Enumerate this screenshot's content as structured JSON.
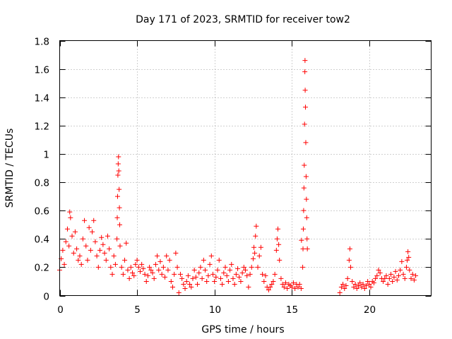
{
  "chart_data": {
    "type": "scatter",
    "title": "Day 171 of 2023, SRMTID for receiver tow2",
    "xlabel": "GPS time / hours",
    "ylabel": "SRMTID / TECUs",
    "xlim": [
      0,
      24
    ],
    "ylim": [
      0,
      1.8
    ],
    "xticks": [
      0,
      5,
      10,
      15,
      20
    ],
    "xtick_labels": [
      "0",
      "5",
      "10",
      "15",
      "20"
    ],
    "yticks": [
      0,
      0.2,
      0.4,
      0.6,
      0.8,
      1.0,
      1.2,
      1.4,
      1.6,
      1.8
    ],
    "ytick_labels": [
      "0",
      "0.2",
      "0.4",
      "0.6",
      "0.8",
      "1",
      "1.2",
      "1.4",
      "1.6",
      "1.8"
    ],
    "grid": true,
    "marker": "plus",
    "marker_color": "#ff0000",
    "series": [
      {
        "name": "SRMTID",
        "points": [
          [
            0.0,
            0.18
          ],
          [
            0.1,
            0.26
          ],
          [
            0.2,
            0.32
          ],
          [
            0.3,
            0.22
          ],
          [
            0.4,
            0.38
          ],
          [
            0.5,
            0.47
          ],
          [
            0.6,
            0.35
          ],
          [
            0.65,
            0.59
          ],
          [
            0.7,
            0.55
          ],
          [
            0.8,
            0.42
          ],
          [
            0.9,
            0.3
          ],
          [
            1.0,
            0.45
          ],
          [
            1.1,
            0.33
          ],
          [
            1.2,
            0.25
          ],
          [
            1.3,
            0.28
          ],
          [
            1.4,
            0.22
          ],
          [
            1.5,
            0.4
          ],
          [
            1.6,
            0.53
          ],
          [
            1.7,
            0.35
          ],
          [
            1.8,
            0.25
          ],
          [
            1.9,
            0.48
          ],
          [
            2.0,
            0.32
          ],
          [
            2.1,
            0.45
          ],
          [
            2.2,
            0.53
          ],
          [
            2.3,
            0.38
          ],
          [
            2.4,
            0.28
          ],
          [
            2.5,
            0.2
          ],
          [
            2.6,
            0.32
          ],
          [
            2.7,
            0.41
          ],
          [
            2.8,
            0.36
          ],
          [
            2.9,
            0.3
          ],
          [
            3.0,
            0.25
          ],
          [
            3.1,
            0.42
          ],
          [
            3.2,
            0.33
          ],
          [
            3.3,
            0.2
          ],
          [
            3.4,
            0.15
          ],
          [
            3.5,
            0.28
          ],
          [
            3.6,
            0.22
          ],
          [
            3.7,
            0.4
          ],
          [
            3.72,
            0.55
          ],
          [
            3.74,
            0.7
          ],
          [
            3.76,
            0.85
          ],
          [
            3.78,
            0.93
          ],
          [
            3.8,
            0.98
          ],
          [
            3.82,
            0.88
          ],
          [
            3.84,
            0.75
          ],
          [
            3.86,
            0.62
          ],
          [
            3.88,
            0.5
          ],
          [
            3.9,
            0.35
          ],
          [
            4.0,
            0.2
          ],
          [
            4.1,
            0.15
          ],
          [
            4.2,
            0.25
          ],
          [
            4.3,
            0.37
          ],
          [
            4.4,
            0.18
          ],
          [
            4.5,
            0.12
          ],
          [
            4.6,
            0.2
          ],
          [
            4.7,
            0.16
          ],
          [
            4.8,
            0.14
          ],
          [
            4.9,
            0.22
          ],
          [
            5.0,
            0.25
          ],
          [
            5.1,
            0.2
          ],
          [
            5.2,
            0.17
          ],
          [
            5.3,
            0.22
          ],
          [
            5.4,
            0.19
          ],
          [
            5.5,
            0.15
          ],
          [
            5.6,
            0.1
          ],
          [
            5.7,
            0.14
          ],
          [
            5.8,
            0.2
          ],
          [
            5.9,
            0.18
          ],
          [
            6.0,
            0.16
          ],
          [
            6.1,
            0.12
          ],
          [
            6.2,
            0.22
          ],
          [
            6.3,
            0.28
          ],
          [
            6.4,
            0.18
          ],
          [
            6.5,
            0.24
          ],
          [
            6.6,
            0.15
          ],
          [
            6.7,
            0.2
          ],
          [
            6.8,
            0.13
          ],
          [
            6.9,
            0.28
          ],
          [
            7.0,
            0.18
          ],
          [
            7.1,
            0.25
          ],
          [
            7.2,
            0.1
          ],
          [
            7.3,
            0.06
          ],
          [
            7.4,
            0.15
          ],
          [
            7.5,
            0.3
          ],
          [
            7.6,
            0.2
          ],
          [
            7.7,
            0.02
          ],
          [
            7.8,
            0.15
          ],
          [
            7.9,
            0.12
          ],
          [
            8.0,
            0.08
          ],
          [
            8.1,
            0.05
          ],
          [
            8.2,
            0.1
          ],
          [
            8.3,
            0.14
          ],
          [
            8.4,
            0.08
          ],
          [
            8.5,
            0.06
          ],
          [
            8.6,
            0.12
          ],
          [
            8.7,
            0.18
          ],
          [
            8.8,
            0.13
          ],
          [
            8.9,
            0.08
          ],
          [
            9.0,
            0.16
          ],
          [
            9.1,
            0.2
          ],
          [
            9.2,
            0.12
          ],
          [
            9.3,
            0.25
          ],
          [
            9.4,
            0.18
          ],
          [
            9.5,
            0.1
          ],
          [
            9.6,
            0.14
          ],
          [
            9.7,
            0.22
          ],
          [
            9.8,
            0.28
          ],
          [
            9.9,
            0.15
          ],
          [
            10.0,
            0.1
          ],
          [
            10.1,
            0.13
          ],
          [
            10.2,
            0.18
          ],
          [
            10.3,
            0.25
          ],
          [
            10.4,
            0.12
          ],
          [
            10.5,
            0.08
          ],
          [
            10.6,
            0.16
          ],
          [
            10.7,
            0.2
          ],
          [
            10.8,
            0.14
          ],
          [
            10.9,
            0.1
          ],
          [
            11.0,
            0.18
          ],
          [
            11.1,
            0.22
          ],
          [
            11.2,
            0.12
          ],
          [
            11.3,
            0.08
          ],
          [
            11.4,
            0.15
          ],
          [
            11.5,
            0.19
          ],
          [
            11.6,
            0.13
          ],
          [
            11.7,
            0.1
          ],
          [
            11.8,
            0.16
          ],
          [
            11.9,
            0.2
          ],
          [
            12.0,
            0.18
          ],
          [
            12.1,
            0.14
          ],
          [
            12.2,
            0.06
          ],
          [
            12.3,
            0.15
          ],
          [
            12.4,
            0.2
          ],
          [
            12.5,
            0.26
          ],
          [
            12.55,
            0.34
          ],
          [
            12.6,
            0.3
          ],
          [
            12.65,
            0.42
          ],
          [
            12.7,
            0.49
          ],
          [
            12.8,
            0.2
          ],
          [
            12.9,
            0.28
          ],
          [
            13.0,
            0.34
          ],
          [
            13.1,
            0.15
          ],
          [
            13.2,
            0.1
          ],
          [
            13.3,
            0.14
          ],
          [
            13.4,
            0.06
          ],
          [
            13.5,
            0.04
          ],
          [
            13.6,
            0.06
          ],
          [
            13.7,
            0.08
          ],
          [
            13.8,
            0.1
          ],
          [
            13.9,
            0.15
          ],
          [
            14.0,
            0.32
          ],
          [
            14.05,
            0.4
          ],
          [
            14.1,
            0.47
          ],
          [
            14.15,
            0.36
          ],
          [
            14.2,
            0.25
          ],
          [
            14.3,
            0.12
          ],
          [
            14.4,
            0.08
          ],
          [
            14.5,
            0.06
          ],
          [
            14.6,
            0.09
          ],
          [
            14.7,
            0.05
          ],
          [
            14.8,
            0.08
          ],
          [
            14.9,
            0.07
          ],
          [
            15.0,
            0.06
          ],
          [
            15.1,
            0.09
          ],
          [
            15.2,
            0.05
          ],
          [
            15.3,
            0.08
          ],
          [
            15.4,
            0.06
          ],
          [
            15.5,
            0.08
          ],
          [
            15.6,
            0.05
          ],
          [
            15.62,
            0.39
          ],
          [
            15.7,
            0.2
          ],
          [
            15.72,
            0.33
          ],
          [
            15.74,
            0.47
          ],
          [
            15.76,
            0.6
          ],
          [
            15.78,
            0.76
          ],
          [
            15.8,
            0.92
          ],
          [
            15.82,
            1.21
          ],
          [
            15.84,
            1.58
          ],
          [
            15.85,
            1.66
          ],
          [
            15.86,
            1.45
          ],
          [
            15.88,
            1.33
          ],
          [
            15.9,
            1.08
          ],
          [
            15.92,
            0.84
          ],
          [
            15.94,
            0.68
          ],
          [
            15.96,
            0.55
          ],
          [
            15.98,
            0.4
          ],
          [
            16.0,
            0.33
          ],
          [
            18.1,
            0.02
          ],
          [
            18.2,
            0.06
          ],
          [
            18.3,
            0.08
          ],
          [
            18.4,
            0.05
          ],
          [
            18.5,
            0.07
          ],
          [
            18.6,
            0.12
          ],
          [
            18.7,
            0.25
          ],
          [
            18.75,
            0.33
          ],
          [
            18.8,
            0.2
          ],
          [
            18.9,
            0.1
          ],
          [
            19.0,
            0.06
          ],
          [
            19.1,
            0.08
          ],
          [
            19.2,
            0.05
          ],
          [
            19.3,
            0.07
          ],
          [
            19.4,
            0.09
          ],
          [
            19.5,
            0.06
          ],
          [
            19.6,
            0.08
          ],
          [
            19.7,
            0.05
          ],
          [
            19.8,
            0.07
          ],
          [
            19.9,
            0.1
          ],
          [
            20.0,
            0.08
          ],
          [
            20.1,
            0.06
          ],
          [
            20.2,
            0.1
          ],
          [
            20.3,
            0.09
          ],
          [
            20.4,
            0.12
          ],
          [
            20.5,
            0.14
          ],
          [
            20.6,
            0.18
          ],
          [
            20.7,
            0.16
          ],
          [
            20.8,
            0.12
          ],
          [
            20.9,
            0.1
          ],
          [
            21.0,
            0.12
          ],
          [
            21.1,
            0.14
          ],
          [
            21.2,
            0.08
          ],
          [
            21.3,
            0.12
          ],
          [
            21.4,
            0.15
          ],
          [
            21.5,
            0.1
          ],
          [
            21.6,
            0.13
          ],
          [
            21.7,
            0.17
          ],
          [
            21.8,
            0.11
          ],
          [
            21.9,
            0.14
          ],
          [
            22.0,
            0.18
          ],
          [
            22.1,
            0.24
          ],
          [
            22.2,
            0.15
          ],
          [
            22.3,
            0.12
          ],
          [
            22.4,
            0.2
          ],
          [
            22.45,
            0.25
          ],
          [
            22.5,
            0.31
          ],
          [
            22.55,
            0.27
          ],
          [
            22.6,
            0.18
          ],
          [
            22.7,
            0.12
          ],
          [
            22.8,
            0.15
          ],
          [
            22.9,
            0.11
          ],
          [
            23.0,
            0.14
          ]
        ]
      }
    ]
  }
}
